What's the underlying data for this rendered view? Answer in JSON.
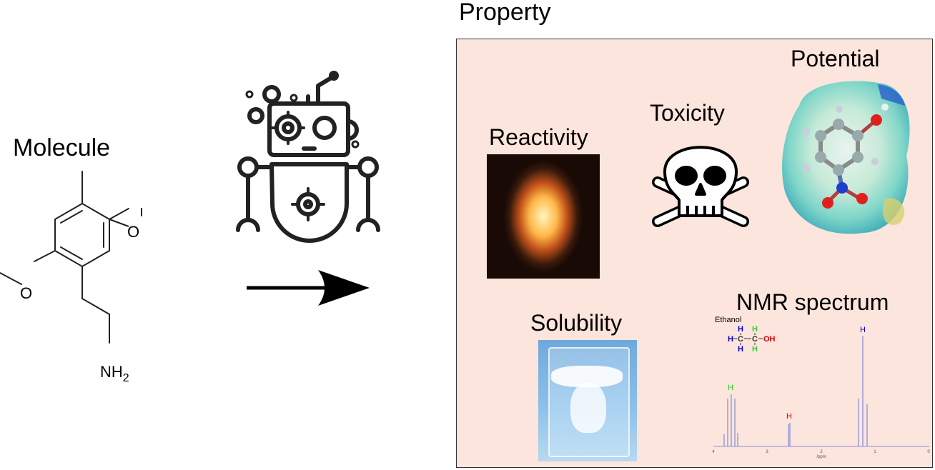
{
  "labels": {
    "molecule": "Molecule",
    "property": "Property",
    "reactivity": "Reactivity",
    "toxicity": "Toxicity",
    "potential": "Potential",
    "solubility": "Solubility",
    "nmr": "NMR spectrum"
  },
  "molecule_atoms": {
    "o1": "O",
    "o2": "O",
    "amine": "NH",
    "amine_sub": "2"
  },
  "nmr": {
    "compound": "Ethanol",
    "struct": {
      "h": "H",
      "c": "C",
      "oh": "OH"
    },
    "peak_label": "H",
    "x_ticks": [
      "4",
      "3",
      "2",
      "1",
      "0"
    ],
    "x_axis_label": "/ppm"
  },
  "colors": {
    "box_fill": "#fbe5dc",
    "h_blue": "#0000cc",
    "h_green": "#33cc33",
    "h_red": "#dd0000",
    "peaks": "#8a8fd8"
  },
  "icons": [
    "robot-icon",
    "gear-icon",
    "arrow-icon",
    "skull-crossbones-icon",
    "flame-photo",
    "water-glass-photo",
    "electrostatic-potential-map"
  ]
}
